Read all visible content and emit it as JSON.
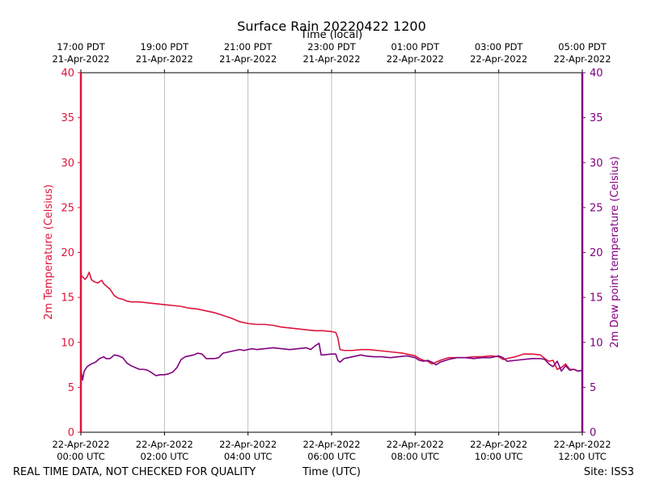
{
  "chart_data": {
    "type": "line",
    "title": "Surface Rain 20220422 1200",
    "top_axis_label": "Time (local)",
    "xlabel": "Time (UTC)",
    "ylabel_left": "2m Temperature (Celsius)",
    "ylabel_right": "2m Dew point temperature (Celsius)",
    "footer_left": "REAL TIME DATA, NOT CHECKED FOR QUALITY",
    "footer_right": "Site: ISS3",
    "xlim_hours": [
      0,
      12
    ],
    "ylim_left": [
      0,
      40
    ],
    "ylim_right": [
      0,
      40
    ],
    "yticks": [
      0,
      5,
      10,
      15,
      20,
      25,
      30,
      35,
      40
    ],
    "grid": "vertical",
    "bottom_ticks": [
      {
        "hour": 0,
        "line1": "22-Apr-2022",
        "line2": "00:00 UTC"
      },
      {
        "hour": 2,
        "line1": "22-Apr-2022",
        "line2": "02:00 UTC"
      },
      {
        "hour": 4,
        "line1": "22-Apr-2022",
        "line2": "04:00 UTC"
      },
      {
        "hour": 6,
        "line1": "22-Apr-2022",
        "line2": "06:00 UTC"
      },
      {
        "hour": 8,
        "line1": "22-Apr-2022",
        "line2": "08:00 UTC"
      },
      {
        "hour": 10,
        "line1": "22-Apr-2022",
        "line2": "10:00 UTC"
      },
      {
        "hour": 12,
        "line1": "22-Apr-2022",
        "line2": "12:00 UTC"
      }
    ],
    "top_ticks": [
      {
        "hour": 0,
        "line1": "17:00 PDT",
        "line2": "21-Apr-2022"
      },
      {
        "hour": 2,
        "line1": "19:00 PDT",
        "line2": "21-Apr-2022"
      },
      {
        "hour": 4,
        "line1": "21:00 PDT",
        "line2": "21-Apr-2022"
      },
      {
        "hour": 6,
        "line1": "23:00 PDT",
        "line2": "21-Apr-2022"
      },
      {
        "hour": 8,
        "line1": "01:00 PDT",
        "line2": "22-Apr-2022"
      },
      {
        "hour": 10,
        "line1": "03:00 PDT",
        "line2": "22-Apr-2022"
      },
      {
        "hour": 12,
        "line1": "05:00 PDT",
        "line2": "22-Apr-2022"
      }
    ],
    "series": [
      {
        "name": "2m Temperature",
        "color": "#dc143c",
        "axis": "left",
        "x": [
          0.0,
          0.1,
          0.15,
          0.2,
          0.25,
          0.3,
          0.4,
          0.5,
          0.55,
          0.6,
          0.7,
          0.8,
          0.9,
          1.0,
          1.1,
          1.2,
          1.4,
          1.6,
          1.8,
          2.0,
          2.2,
          2.4,
          2.6,
          2.8,
          3.0,
          3.2,
          3.4,
          3.6,
          3.8,
          4.0,
          4.2,
          4.4,
          4.6,
          4.8,
          5.0,
          5.2,
          5.4,
          5.6,
          5.8,
          6.0,
          6.1,
          6.15,
          6.2,
          6.3,
          6.5,
          6.7,
          6.9,
          7.1,
          7.3,
          7.5,
          7.7,
          7.9,
          8.0,
          8.1,
          8.2,
          8.3,
          8.4,
          8.5,
          8.6,
          8.8,
          9.0,
          9.2,
          9.4,
          9.6,
          9.8,
          10.0,
          10.1,
          10.2,
          10.4,
          10.6,
          10.8,
          11.0,
          11.1,
          11.2,
          11.3,
          11.4,
          11.5,
          11.6,
          11.7,
          11.8,
          11.9,
          12.0
        ],
        "values": [
          17.5,
          17.0,
          17.3,
          17.8,
          17.0,
          16.8,
          16.6,
          16.9,
          16.5,
          16.3,
          15.9,
          15.2,
          14.9,
          14.8,
          14.6,
          14.5,
          14.5,
          14.4,
          14.3,
          14.2,
          14.1,
          14.0,
          13.8,
          13.7,
          13.5,
          13.3,
          13.0,
          12.7,
          12.3,
          12.1,
          12.0,
          12.0,
          11.9,
          11.7,
          11.6,
          11.5,
          11.4,
          11.3,
          11.3,
          11.2,
          11.1,
          10.5,
          9.2,
          9.1,
          9.1,
          9.2,
          9.2,
          9.1,
          9.0,
          8.9,
          8.8,
          8.6,
          8.5,
          8.2,
          8.0,
          7.9,
          7.6,
          7.8,
          8.0,
          8.3,
          8.3,
          8.3,
          8.4,
          8.4,
          8.5,
          8.4,
          8.1,
          8.2,
          8.4,
          8.7,
          8.7,
          8.6,
          8.2,
          7.9,
          8.0,
          7.0,
          7.2,
          7.6,
          7.0,
          7.0,
          6.8,
          6.9
        ]
      },
      {
        "name": "2m Dew point temperature",
        "color": "#800080",
        "axis": "right",
        "x": [
          0.0,
          0.04,
          0.08,
          0.15,
          0.25,
          0.35,
          0.45,
          0.55,
          0.6,
          0.7,
          0.8,
          0.9,
          1.0,
          1.1,
          1.2,
          1.3,
          1.4,
          1.5,
          1.6,
          1.7,
          1.8,
          1.9,
          2.0,
          2.1,
          2.2,
          2.3,
          2.4,
          2.5,
          2.6,
          2.7,
          2.8,
          2.9,
          3.0,
          3.1,
          3.2,
          3.3,
          3.4,
          3.5,
          3.6,
          3.7,
          3.8,
          3.9,
          4.0,
          4.1,
          4.2,
          4.4,
          4.6,
          4.8,
          5.0,
          5.2,
          5.4,
          5.5,
          5.6,
          5.7,
          5.75,
          5.8,
          6.0,
          6.1,
          6.15,
          6.2,
          6.3,
          6.4,
          6.5,
          6.6,
          6.7,
          6.8,
          7.0,
          7.2,
          7.4,
          7.6,
          7.8,
          8.0,
          8.1,
          8.2,
          8.3,
          8.4,
          8.5,
          8.6,
          8.8,
          9.0,
          9.2,
          9.4,
          9.6,
          9.8,
          10.0,
          10.1,
          10.2,
          10.4,
          10.6,
          10.8,
          11.0,
          11.1,
          11.2,
          11.3,
          11.4,
          11.5,
          11.6,
          11.7,
          11.8,
          11.9,
          12.0
        ],
        "values": [
          7.0,
          5.8,
          6.8,
          7.3,
          7.6,
          7.8,
          8.2,
          8.4,
          8.2,
          8.2,
          8.6,
          8.5,
          8.3,
          7.7,
          7.4,
          7.2,
          7.0,
          7.0,
          6.9,
          6.6,
          6.3,
          6.4,
          6.4,
          6.5,
          6.7,
          7.2,
          8.1,
          8.4,
          8.5,
          8.6,
          8.8,
          8.7,
          8.2,
          8.2,
          8.2,
          8.3,
          8.8,
          8.9,
          9.0,
          9.1,
          9.2,
          9.1,
          9.2,
          9.3,
          9.2,
          9.3,
          9.4,
          9.3,
          9.2,
          9.3,
          9.4,
          9.2,
          9.6,
          9.9,
          8.6,
          8.6,
          8.7,
          8.7,
          8.0,
          7.8,
          8.2,
          8.3,
          8.4,
          8.5,
          8.6,
          8.5,
          8.4,
          8.4,
          8.3,
          8.4,
          8.5,
          8.3,
          8.0,
          7.9,
          8.0,
          7.8,
          7.5,
          7.8,
          8.1,
          8.3,
          8.3,
          8.2,
          8.3,
          8.3,
          8.5,
          8.3,
          7.9,
          8.0,
          8.1,
          8.2,
          8.2,
          8.1,
          7.6,
          7.3,
          7.9,
          6.8,
          7.4,
          6.9,
          7.0,
          6.8,
          6.9
        ]
      }
    ]
  }
}
